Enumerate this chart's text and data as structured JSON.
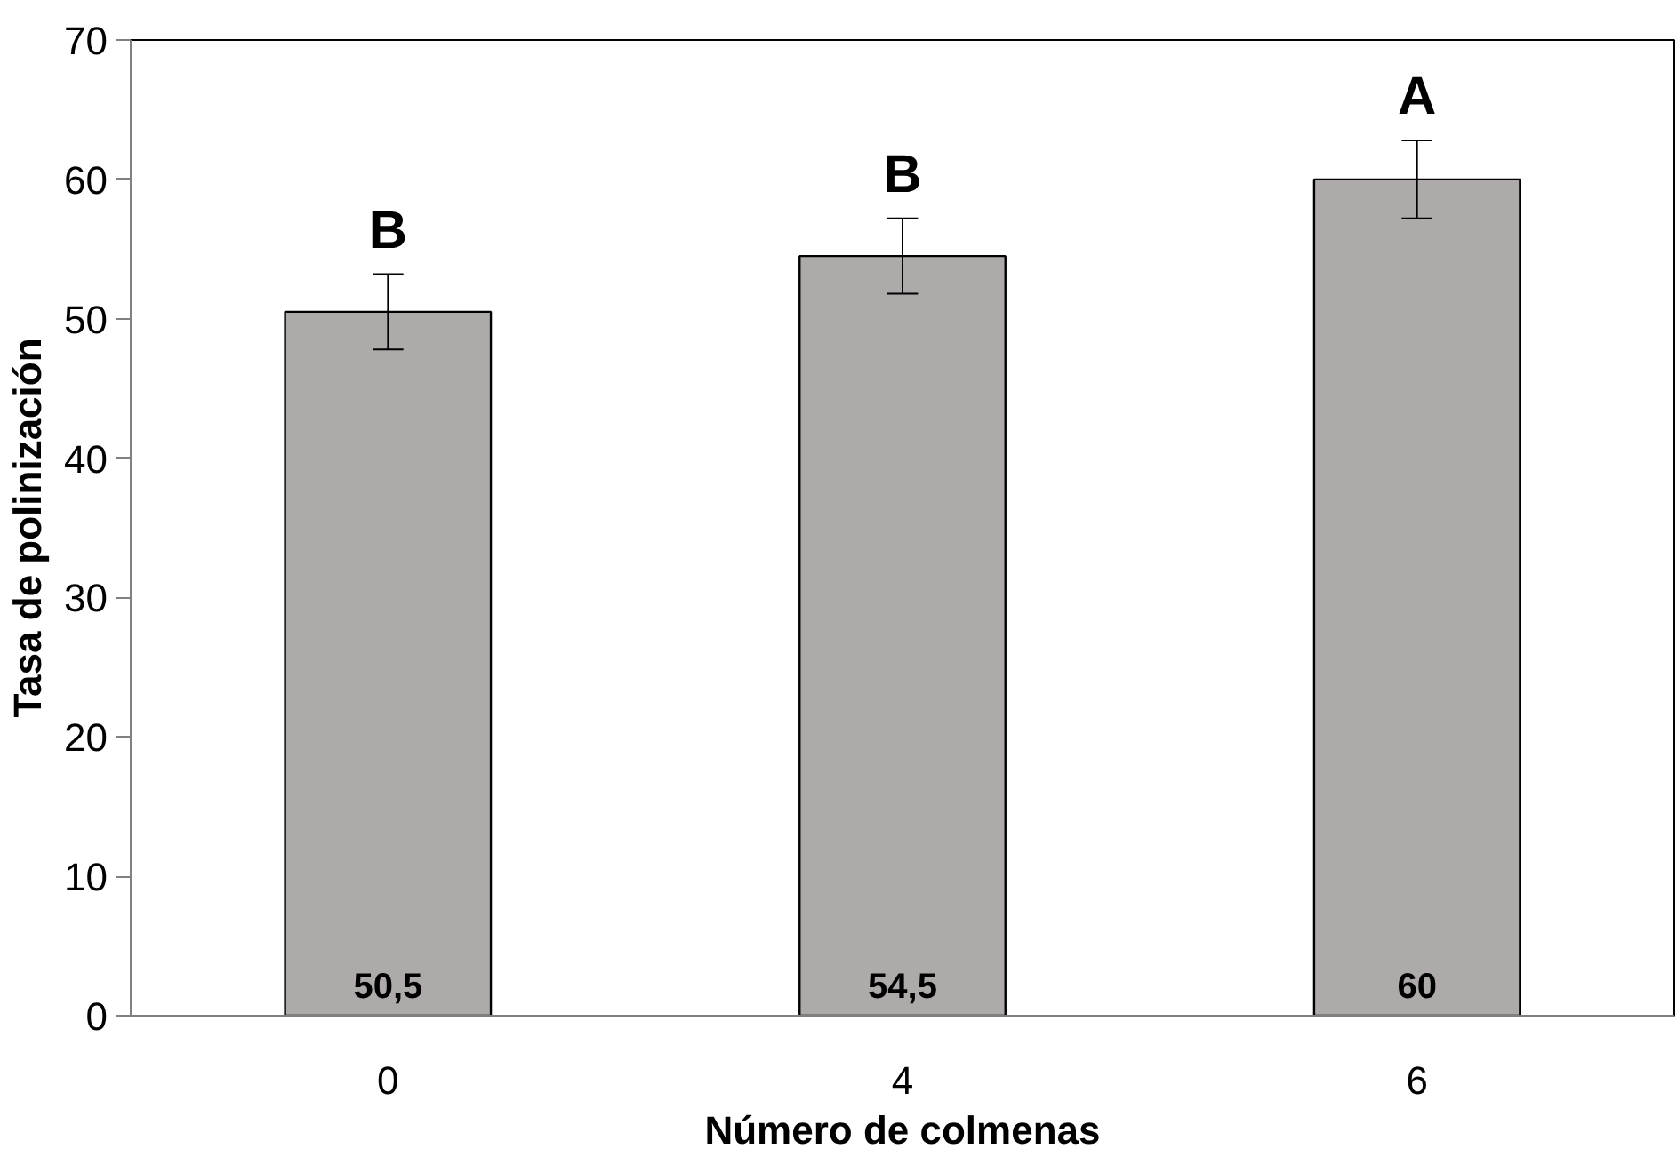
{
  "chart_data": {
    "type": "bar",
    "xlabel": "Número de colmenas",
    "ylabel": "Tasa de polinización",
    "categories": [
      "0",
      "4",
      "6"
    ],
    "values": [
      50.5,
      54.5,
      60
    ],
    "color": "#aeaaaa",
    "errors": [
      2.7,
      2.7,
      2.8
    ],
    "value_labels": [
      "50,5",
      "54,5",
      "60"
    ],
    "annotations": [
      "B",
      "B",
      "A"
    ],
    "ylim": [
      0,
      70
    ],
    "yticks": [
      0,
      10,
      20,
      30,
      40,
      50,
      60,
      70
    ],
    "grid": false
  }
}
